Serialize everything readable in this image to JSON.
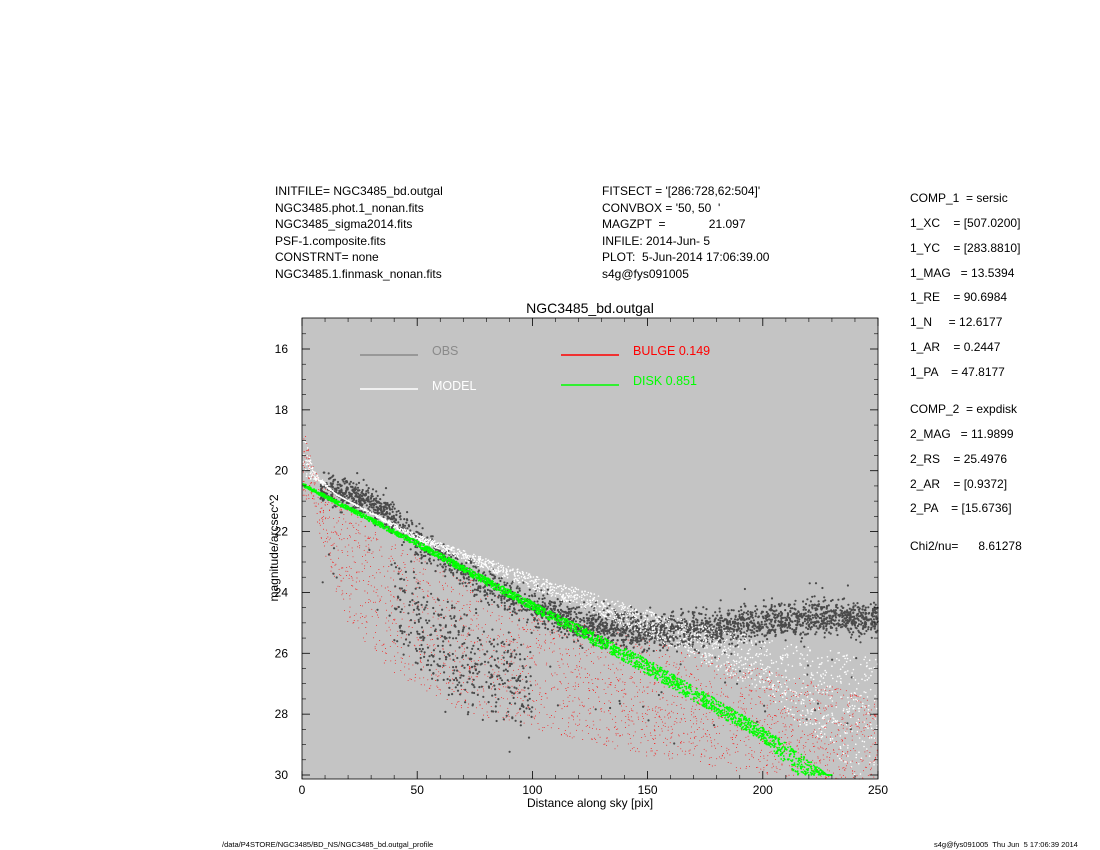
{
  "header": {
    "left_lines": [
      "INITFILE= NGC3485_bd.outgal",
      "NGC3485.phot.1_nonan.fits",
      "NGC3485_sigma2014.fits",
      "PSF-1.composite.fits",
      "CONSTRNT= none",
      "NGC3485.1.finmask_nonan.fits"
    ],
    "mid_lines": [
      "FITSECT = '[286:728,62:504]'",
      "CONVBOX = '50, 50  '",
      "MAGZPT  =             21.097",
      "INFILE: 2014-Jun- 5",
      "PLOT:  5-Jun-2014 17:06:39.00",
      "s4g@fys091005"
    ]
  },
  "params": [
    "COMP_1  = sersic",
    "1_XC    = [507.0200]",
    "1_YC    = [283.8810]",
    "1_MAG   = 13.5394",
    "1_RE    = 90.6984",
    "1_N     = 12.6177",
    "1_AR    = 0.2447",
    "1_PA    = 47.8177",
    "COMP_2  = expdisk",
    "2_MAG   = 11.9899",
    "2_RS    = 25.4976",
    "2_AR    = [0.9372]",
    "2_PA    = [15.6736]",
    "Chi2/nu=      8.61278"
  ],
  "footer": {
    "path": "/data/P4STORE/NGC3485/BD_NS/NGC3485_bd.outgal_profile",
    "stamp": "s4g@fys091005  Thu Jun  5 17:06:39 2014"
  },
  "colors": {
    "plot_bg": "#c4c4c4",
    "obs": "#4a4a4a",
    "obs_legend": "#8a8a8a",
    "model": "#ffffff",
    "bulge": "#ff0000",
    "disk": "#00ff00"
  },
  "chart_data": {
    "type": "scatter",
    "title": "NGC3485_bd.outgal",
    "xlabel": "Distance along sky [pix]",
    "ylabel": "magnitude/arcsec^2",
    "xlim": [
      0,
      250
    ],
    "ylim": [
      15,
      30
    ],
    "y_inverted": true,
    "grid": false,
    "x_ticks": [
      0,
      50,
      100,
      150,
      200,
      250
    ],
    "y_ticks": [
      16,
      18,
      20,
      22,
      24,
      26,
      28,
      30
    ],
    "legend": [
      {
        "label": "OBS",
        "color": "#8a8a8a"
      },
      {
        "label": "MODEL",
        "color": "#ffffff"
      },
      {
        "label": "BULGE  0.149",
        "color": "#ff0000"
      },
      {
        "label": "DISK  0.851",
        "color": "#00ff00"
      }
    ],
    "series": [
      {
        "name": "OBS",
        "description_points": [
          [
            10,
            20.6
          ],
          [
            25,
            20.9
          ],
          [
            35,
            21.3
          ],
          [
            55,
            22.6
          ],
          [
            80,
            23.8
          ],
          [
            100,
            24.5
          ],
          [
            125,
            25.1
          ],
          [
            150,
            25.3
          ],
          [
            175,
            25.2
          ],
          [
            200,
            25.0
          ],
          [
            225,
            24.8
          ],
          [
            250,
            24.9
          ]
        ]
      },
      {
        "name": "MODEL",
        "upper": [
          [
            0,
            18.5
          ],
          [
            5,
            20.0
          ],
          [
            15,
            20.8
          ],
          [
            50,
            22.1
          ],
          [
            100,
            23.4
          ],
          [
            150,
            24.6
          ],
          [
            200,
            25.5
          ],
          [
            250,
            26.2
          ]
        ],
        "lower": [
          [
            5,
            20.3
          ],
          [
            20,
            21.0
          ],
          [
            50,
            22.3
          ],
          [
            100,
            23.9
          ],
          [
            150,
            25.4
          ],
          [
            200,
            27.3
          ],
          [
            225,
            28.9
          ],
          [
            240,
            30.0
          ]
        ]
      },
      {
        "name": "BULGE",
        "upper": [
          [
            0,
            18.4
          ],
          [
            5,
            19.9
          ],
          [
            20,
            21.3
          ],
          [
            50,
            22.8
          ],
          [
            100,
            24.5
          ],
          [
            150,
            25.6
          ],
          [
            200,
            26.5
          ],
          [
            250,
            27.5
          ]
        ],
        "lower": [
          [
            5,
            21.0
          ],
          [
            10,
            23.0
          ],
          [
            20,
            25.0
          ],
          [
            40,
            26.7
          ],
          [
            70,
            27.9
          ],
          [
            100,
            28.5
          ],
          [
            150,
            29.4
          ],
          [
            200,
            30.0
          ],
          [
            250,
            30.2
          ]
        ]
      },
      {
        "name": "DISK",
        "upper": [
          [
            0,
            20.4
          ],
          [
            50,
            22.3
          ],
          [
            100,
            24.3
          ],
          [
            150,
            26.2
          ],
          [
            200,
            28.4
          ],
          [
            220,
            29.5
          ],
          [
            228,
            30.0
          ]
        ],
        "lower": [
          [
            0,
            20.5
          ],
          [
            50,
            22.5
          ],
          [
            100,
            24.6
          ],
          [
            150,
            26.7
          ],
          [
            200,
            28.9
          ],
          [
            215,
            30.0
          ]
        ]
      }
    ]
  }
}
